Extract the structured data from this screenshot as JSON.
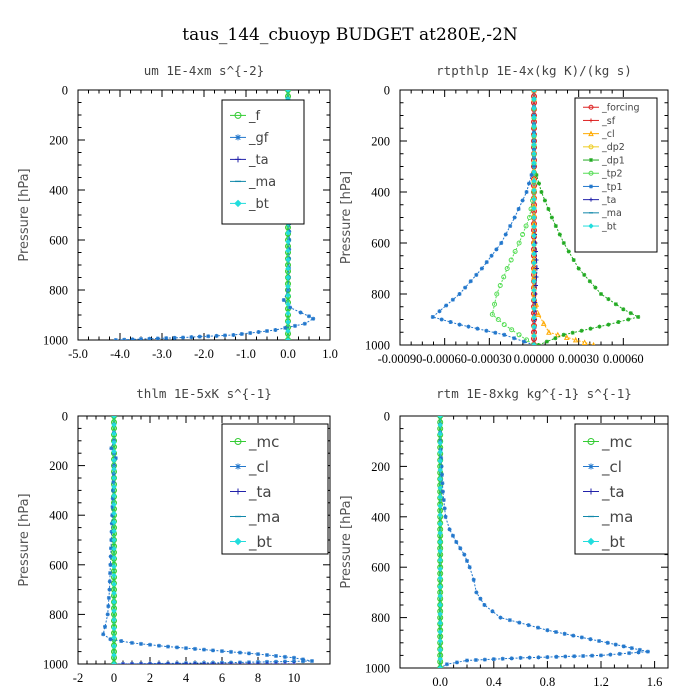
{
  "figure_title": "taus_144_cbuoyp  BUDGET at280E,-2N",
  "chart_data": [
    {
      "type": "line",
      "title": "um  1E-4xm s^{-2}",
      "ylabel": "Pressure [hPa]",
      "xlim": [
        -5.0,
        1.0
      ],
      "ylim": [
        1000,
        0
      ],
      "x_ticks": [
        "-5.0",
        "-4.0",
        "-3.0",
        "-2.0",
        "-1.0",
        "0.0",
        "1.0"
      ],
      "y_ticks": [
        "0",
        "200",
        "400",
        "600",
        "800",
        "1000"
      ],
      "legend_position": "top-right",
      "series": [
        {
          "name": "_f",
          "color": "#33cc33",
          "marker": "circle",
          "points": [
            [
              0,
              0
            ],
            [
              0,
              100
            ],
            [
              0,
              200
            ],
            [
              0,
              300
            ],
            [
              0,
              400
            ],
            [
              0,
              500
            ],
            [
              0,
              600
            ],
            [
              0,
              700
            ],
            [
              0,
              800
            ],
            [
              0,
              900
            ],
            [
              0,
              1000
            ]
          ]
        },
        {
          "name": "_gf",
          "color": "#2277cc",
          "marker": "star",
          "points": [
            [
              0,
              0
            ],
            [
              -0.02,
              100
            ],
            [
              -0.08,
              130
            ],
            [
              -0.05,
              160
            ],
            [
              0.02,
              200
            ],
            [
              0.03,
              400
            ],
            [
              0.03,
              600
            ],
            [
              0.02,
              750
            ],
            [
              0.0,
              800
            ],
            [
              -0.1,
              840
            ],
            [
              0.05,
              870
            ],
            [
              0.3,
              890
            ],
            [
              0.5,
              905
            ],
            [
              0.6,
              915
            ],
            [
              0.4,
              935
            ],
            [
              -0.3,
              960
            ],
            [
              -1.3,
              980
            ],
            [
              -2.5,
              990
            ],
            [
              -3.3,
              995
            ],
            [
              -4.1,
              1000
            ]
          ]
        },
        {
          "name": "_ta",
          "color": "#2222aa",
          "marker": "plus",
          "points": [
            [
              0,
              0
            ],
            [
              0,
              1000
            ]
          ]
        },
        {
          "name": "_ma",
          "color": "#1188aa",
          "marker": "dash",
          "points": [
            [
              0,
              0
            ],
            [
              0,
              1000
            ]
          ]
        },
        {
          "name": "_bt",
          "color": "#22dddd",
          "marker": "diamond",
          "points": [
            [
              0,
              0
            ],
            [
              0,
              1000
            ]
          ]
        }
      ]
    },
    {
      "type": "line",
      "title": "rtpthlp  1E-4x(kg K)/(kg s)",
      "ylabel": "Pressure [hPa]",
      "xlim": [
        -0.0009,
        0.0009
      ],
      "ylim": [
        1000,
        0
      ],
      "x_ticks": [
        "-0.00090",
        "-0.00060",
        "-0.00030",
        "0.00000",
        "0.00030",
        "0.00060"
      ],
      "y_ticks": [
        "0",
        "200",
        "400",
        "600",
        "800",
        "1000"
      ],
      "legend_position": "top-right",
      "series": [
        {
          "name": "_forcing",
          "color": "#dd2222",
          "marker": "circle",
          "points": [
            [
              0,
              0
            ],
            [
              0,
              100
            ],
            [
              0,
              200
            ],
            [
              0,
              300
            ],
            [
              0,
              400
            ],
            [
              0,
              500
            ],
            [
              0,
              600
            ],
            [
              0,
              700
            ],
            [
              0,
              800
            ],
            [
              0,
              900
            ],
            [
              0,
              1000
            ]
          ]
        },
        {
          "name": "_sf",
          "color": "#dd2222",
          "marker": "plus",
          "points": [
            [
              0,
              0
            ],
            [
              0,
              1000
            ]
          ]
        },
        {
          "name": "_cl",
          "color": "#ffaa00",
          "marker": "triangle",
          "points": [
            [
              0,
              0
            ],
            [
              0,
              800
            ],
            [
              3e-05,
              880
            ],
            [
              0.0001,
              950
            ],
            [
              0.0004,
              1000
            ]
          ]
        },
        {
          "name": "_dp2",
          "color": "#eecc22",
          "marker": "circle",
          "points": [
            [
              0,
              0
            ],
            [
              0,
              1000
            ]
          ]
        },
        {
          "name": "_dp1",
          "color": "#22aa22",
          "marker": "star",
          "points": [
            [
              0,
              0
            ],
            [
              0,
              300
            ],
            [
              5e-05,
              400
            ],
            [
              0.00012,
              500
            ],
            [
              0.0002,
              600
            ],
            [
              0.0003,
              700
            ],
            [
              0.00045,
              800
            ],
            [
              0.0006,
              860
            ],
            [
              0.0007,
              890
            ],
            [
              0.0005,
              920
            ],
            [
              0.0002,
              960
            ],
            [
              3e-05,
              1000
            ]
          ]
        },
        {
          "name": "_tp2",
          "color": "#55dd55",
          "marker": "circle",
          "points": [
            [
              0,
              0
            ],
            [
              0,
              400
            ],
            [
              -3e-05,
              500
            ],
            [
              -0.0001,
              600
            ],
            [
              -0.00018,
              700
            ],
            [
              -0.00025,
              800
            ],
            [
              -0.00028,
              880
            ],
            [
              -0.0002,
              920
            ],
            [
              -0.0001,
              960
            ],
            [
              0,
              1000
            ]
          ]
        },
        {
          "name": "_tp1",
          "color": "#2277cc",
          "marker": "star",
          "points": [
            [
              0,
              0
            ],
            [
              0,
              300
            ],
            [
              -5e-05,
              400
            ],
            [
              -0.00013,
              500
            ],
            [
              -0.00022,
              600
            ],
            [
              -0.00035,
              700
            ],
            [
              -0.0005,
              800
            ],
            [
              -0.00068,
              890
            ],
            [
              -0.0005,
              920
            ],
            [
              -0.0002,
              960
            ],
            [
              0,
              1000
            ]
          ]
        },
        {
          "name": "_ta",
          "color": "#2222aa",
          "marker": "plus",
          "points": [
            [
              0,
              0
            ],
            [
              0,
              500
            ],
            [
              1e-05,
              600
            ],
            [
              2e-05,
              700
            ],
            [
              1e-05,
              800
            ],
            [
              0,
              1000
            ]
          ]
        },
        {
          "name": "_ma",
          "color": "#1188aa",
          "marker": "dash",
          "points": [
            [
              0,
              0
            ],
            [
              0,
              1000
            ]
          ]
        },
        {
          "name": "_bt",
          "color": "#22dddd",
          "marker": "diamond",
          "points": [
            [
              0,
              0
            ],
            [
              0,
              1000
            ]
          ]
        }
      ]
    },
    {
      "type": "line",
      "title": "thlm  1E-5xK s^{-1}",
      "ylabel": "Pressure [hPa]",
      "xlim": [
        -2,
        12
      ],
      "ylim": [
        1000,
        0
      ],
      "x_ticks": [
        "-2",
        "0",
        "2",
        "4",
        "6",
        "8",
        "10"
      ],
      "y_ticks": [
        "0",
        "200",
        "400",
        "600",
        "800",
        "1000"
      ],
      "legend_position": "top-right",
      "series": [
        {
          "name": "_mc",
          "color": "#33cc33",
          "marker": "circle",
          "points": [
            [
              0,
              0
            ],
            [
              0,
              100
            ],
            [
              0,
              200
            ],
            [
              0,
              300
            ],
            [
              0,
              400
            ],
            [
              0,
              500
            ],
            [
              0,
              600
            ],
            [
              0,
              700
            ],
            [
              0,
              800
            ],
            [
              0,
              900
            ],
            [
              0,
              1000
            ]
          ]
        },
        {
          "name": "_cl",
          "color": "#2277cc",
          "marker": "star",
          "points": [
            [
              0,
              0
            ],
            [
              0,
              100
            ],
            [
              -0.15,
              130
            ],
            [
              0,
              150
            ],
            [
              0.1,
              170
            ],
            [
              0,
              200
            ],
            [
              -0.05,
              300
            ],
            [
              -0.1,
              400
            ],
            [
              -0.15,
              500
            ],
            [
              -0.2,
              600
            ],
            [
              -0.25,
              700
            ],
            [
              -0.35,
              800
            ],
            [
              -0.5,
              850
            ],
            [
              -0.6,
              880
            ],
            [
              -0.2,
              900
            ],
            [
              1,
              915
            ],
            [
              3,
              930
            ],
            [
              5.5,
              945
            ],
            [
              8,
              960
            ],
            [
              10,
              975
            ],
            [
              11,
              988
            ],
            [
              6,
              995
            ],
            [
              0,
              1000
            ]
          ]
        },
        {
          "name": "_ta",
          "color": "#2222aa",
          "marker": "plus",
          "points": [
            [
              0,
              0
            ],
            [
              0,
              1000
            ],
            [
              5,
              1000
            ],
            [
              10,
              1000
            ]
          ]
        },
        {
          "name": "_ma",
          "color": "#1188aa",
          "marker": "dash",
          "points": [
            [
              0,
              0
            ],
            [
              0,
              1000
            ]
          ]
        },
        {
          "name": "_bt",
          "color": "#22dddd",
          "marker": "diamond",
          "points": [
            [
              0,
              0
            ],
            [
              0,
              1000
            ]
          ]
        }
      ]
    },
    {
      "type": "line",
      "title": "rtm  1E-8xkg kg^{-1} s^{-1}",
      "ylabel": "Pressure [hPa]",
      "xlim": [
        -0.3,
        1.7
      ],
      "ylim": [
        1000,
        0
      ],
      "x_ticks": [
        "0.0",
        "0.4",
        "0.8",
        "1.2",
        "1.6"
      ],
      "y_ticks": [
        "0",
        "200",
        "400",
        "600",
        "800",
        "1000"
      ],
      "legend_position": "top-right",
      "series": [
        {
          "name": "_mc",
          "color": "#33cc33",
          "marker": "circle",
          "points": [
            [
              0,
              0
            ],
            [
              0,
              100
            ],
            [
              0,
              200
            ],
            [
              0,
              300
            ],
            [
              0,
              400
            ],
            [
              0,
              500
            ],
            [
              0,
              600
            ],
            [
              0,
              700
            ],
            [
              0,
              800
            ],
            [
              0,
              900
            ],
            [
              0,
              1000
            ]
          ]
        },
        {
          "name": "_cl",
          "color": "#2277cc",
          "marker": "star",
          "points": [
            [
              0,
              0
            ],
            [
              0,
              100
            ],
            [
              0.01,
              200
            ],
            [
              0.02,
              300
            ],
            [
              0.04,
              400
            ],
            [
              0.07,
              450
            ],
            [
              0.12,
              500
            ],
            [
              0.18,
              550
            ],
            [
              0.22,
              600
            ],
            [
              0.25,
              650
            ],
            [
              0.27,
              700
            ],
            [
              0.33,
              750
            ],
            [
              0.45,
              800
            ],
            [
              0.8,
              850
            ],
            [
              1.25,
              900
            ],
            [
              1.55,
              935
            ],
            [
              1.2,
              950
            ],
            [
              0.6,
              960
            ],
            [
              0.2,
              970
            ],
            [
              0.05,
              985
            ],
            [
              0,
              1000
            ]
          ]
        },
        {
          "name": "_ta",
          "color": "#2222aa",
          "marker": "plus",
          "points": [
            [
              0,
              0
            ],
            [
              0,
              1000
            ]
          ]
        },
        {
          "name": "_ma",
          "color": "#1188aa",
          "marker": "dash",
          "points": [
            [
              0,
              0
            ],
            [
              0,
              1000
            ]
          ]
        },
        {
          "name": "_bt",
          "color": "#22dddd",
          "marker": "diamond",
          "points": [
            [
              0,
              0
            ],
            [
              0,
              1000
            ]
          ]
        }
      ]
    }
  ]
}
